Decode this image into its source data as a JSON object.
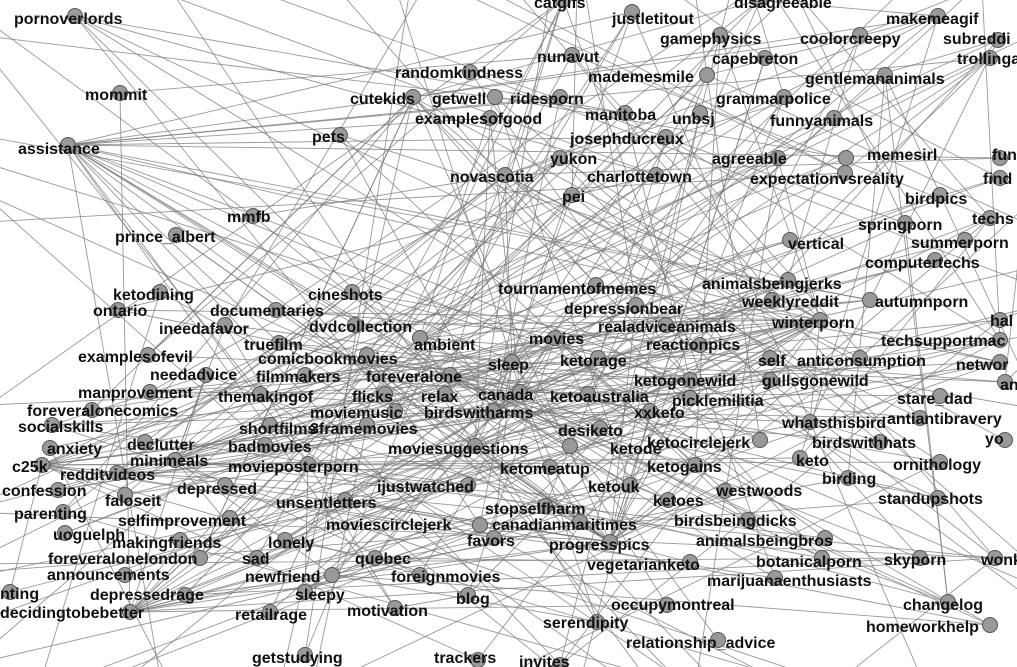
{
  "colors": {
    "background": "#ffffff",
    "edge": "#777777",
    "node_fill": "#999999",
    "node_stroke": "#555555",
    "label": "#111111"
  },
  "nodes": [
    {
      "label": "pornoverlords"
    },
    {
      "label": "catgifs"
    },
    {
      "label": "justletitout"
    },
    {
      "label": "disagreeable"
    },
    {
      "label": "makemeagif"
    },
    {
      "label": "subreddi"
    },
    {
      "label": "gamephysics"
    },
    {
      "label": "coolorcreepy"
    },
    {
      "label": "trollingani"
    },
    {
      "label": "nunavut"
    },
    {
      "label": "capebreton"
    },
    {
      "label": "randomkindness"
    },
    {
      "label": "mademesmile"
    },
    {
      "label": "gentlemananimals"
    },
    {
      "label": "mommit"
    },
    {
      "label": "cutekids"
    },
    {
      "label": "getwell"
    },
    {
      "label": "ridesporn"
    },
    {
      "label": "grammarpolice"
    },
    {
      "label": "manitoba"
    },
    {
      "label": "unbsj"
    },
    {
      "label": "examplesofgood"
    },
    {
      "label": "funnyanimals"
    },
    {
      "label": "pets"
    },
    {
      "label": "josephducreux"
    },
    {
      "label": "assistance"
    },
    {
      "label": "memesirl"
    },
    {
      "label": "fun"
    },
    {
      "label": "yukon"
    },
    {
      "label": "agreeable"
    },
    {
      "label": "novascotia"
    },
    {
      "label": "charlottetown"
    },
    {
      "label": "expectationvsreality"
    },
    {
      "label": "find"
    },
    {
      "label": "pei"
    },
    {
      "label": "birdpics"
    },
    {
      "label": "mmfb"
    },
    {
      "label": "springporn"
    },
    {
      "label": "techs"
    },
    {
      "label": "prince_albert"
    },
    {
      "label": "vertical"
    },
    {
      "label": "summerporn"
    },
    {
      "label": "computertechs"
    },
    {
      "label": "animalsbeingjerks"
    },
    {
      "label": "tournamentofmemes"
    },
    {
      "label": "ketodining"
    },
    {
      "label": "cineshots"
    },
    {
      "label": "autumnporn"
    },
    {
      "label": "documentaries"
    },
    {
      "label": "depressionbear"
    },
    {
      "label": "weeklyreddit"
    },
    {
      "label": "ontario"
    },
    {
      "label": "hal"
    },
    {
      "label": "ineedafavor"
    },
    {
      "label": "dvdcollection"
    },
    {
      "label": "realadviceanimals"
    },
    {
      "label": "winterporn"
    },
    {
      "label": "truefilm"
    },
    {
      "label": "ambient"
    },
    {
      "label": "movies"
    },
    {
      "label": "techsupportmac"
    },
    {
      "label": "reactionpics"
    },
    {
      "label": "examplesofevil"
    },
    {
      "label": "comicbookmovies"
    },
    {
      "label": "ketorage"
    },
    {
      "label": "self"
    },
    {
      "label": "anticonsumption"
    },
    {
      "label": "sleep"
    },
    {
      "label": "networ"
    },
    {
      "label": "needadvice"
    },
    {
      "label": "filmmakers"
    },
    {
      "label": "foreveralone"
    },
    {
      "label": "ketogonewild"
    },
    {
      "label": "gullsgonewild"
    },
    {
      "label": "an"
    },
    {
      "label": "manprovement"
    },
    {
      "label": "canada"
    },
    {
      "label": "themakingof"
    },
    {
      "label": "flicks"
    },
    {
      "label": "relax"
    },
    {
      "label": "ketoaustralia"
    },
    {
      "label": "picklemilitia"
    },
    {
      "label": "stare_dad"
    },
    {
      "label": "foreveralonecomics"
    },
    {
      "label": "moviemusic"
    },
    {
      "label": "birdswitharms"
    },
    {
      "label": "xxketo"
    },
    {
      "label": "antiantibravery"
    },
    {
      "label": "whatsthisbird"
    },
    {
      "label": "socialskills"
    },
    {
      "label": "shortfilms"
    },
    {
      "label": "3framemovies"
    },
    {
      "label": "desiketo"
    },
    {
      "label": "yo"
    },
    {
      "label": "anxiety"
    },
    {
      "label": "declutter"
    },
    {
      "label": "ketocirclejerk"
    },
    {
      "label": "birdswithhats"
    },
    {
      "label": "badmovies"
    },
    {
      "label": "moviesuggestions"
    },
    {
      "label": "ketode"
    },
    {
      "label": "minimeals"
    },
    {
      "label": "keto"
    },
    {
      "label": "ornithology"
    },
    {
      "label": "c25k"
    },
    {
      "label": "movieposterporn"
    },
    {
      "label": "redditvideos"
    },
    {
      "label": "ketomeatup"
    },
    {
      "label": "ketogains"
    },
    {
      "label": "birding"
    },
    {
      "label": "confession"
    },
    {
      "label": "depressed"
    },
    {
      "label": "ijustwatched"
    },
    {
      "label": "ketouk"
    },
    {
      "label": "westwoods"
    },
    {
      "label": "faloseit"
    },
    {
      "label": "unsentletters"
    },
    {
      "label": "ketoes"
    },
    {
      "label": "standupshots"
    },
    {
      "label": "parenting"
    },
    {
      "label": "stopselfharm"
    },
    {
      "label": "selfimprovement"
    },
    {
      "label": "birdsbeingdicks"
    },
    {
      "label": "uoguelph"
    },
    {
      "label": "moviescirclejerk"
    },
    {
      "label": "canadianmaritimes"
    },
    {
      "label": "makingfriends"
    },
    {
      "label": "lonely"
    },
    {
      "label": "favors"
    },
    {
      "label": "animalsbeingbros"
    },
    {
      "label": "progresspics"
    },
    {
      "label": "foreveralonelondon"
    },
    {
      "label": "sad"
    },
    {
      "label": "quebec"
    },
    {
      "label": "botanicalporn"
    },
    {
      "label": "skyporn"
    },
    {
      "label": "wonka"
    },
    {
      "label": "vegetarianketo"
    },
    {
      "label": "announcements"
    },
    {
      "label": "newfriend"
    },
    {
      "label": "foreignmovies"
    },
    {
      "label": "marijuanaenthusiasts"
    },
    {
      "label": "nting"
    },
    {
      "label": "depressedrage"
    },
    {
      "label": "sleepy"
    },
    {
      "label": "blog"
    },
    {
      "label": "occupymontreal"
    },
    {
      "label": "changelog"
    },
    {
      "label": "decidingtobebetter"
    },
    {
      "label": "retailrage"
    },
    {
      "label": "motivation"
    },
    {
      "label": "serendipity"
    },
    {
      "label": "homeworkhelp"
    },
    {
      "label": "relationship_advice"
    },
    {
      "label": "getstudying"
    },
    {
      "label": "trackers"
    },
    {
      "label": "invites"
    }
  ]
}
